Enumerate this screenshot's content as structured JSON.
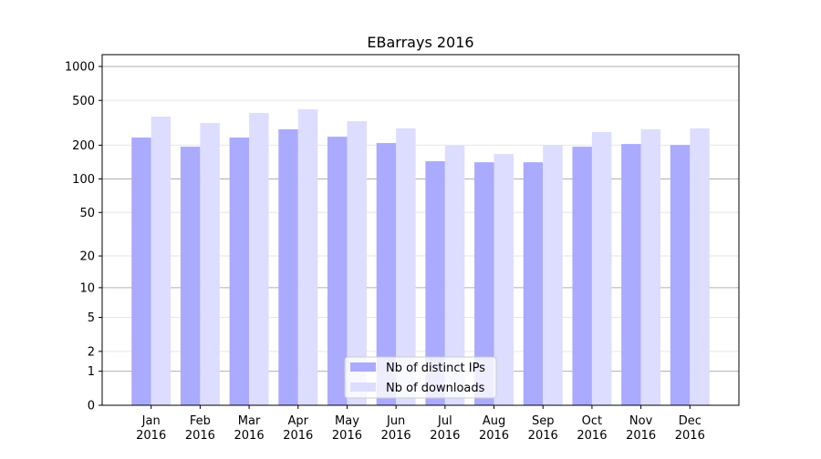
{
  "chart_data": {
    "type": "bar",
    "title": "EBarrays 2016",
    "categories": [
      "Jan 2016",
      "Feb 2016",
      "Mar 2016",
      "Apr 2016",
      "May 2016",
      "Jun 2016",
      "Jul 2016",
      "Aug 2016",
      "Sep 2016",
      "Oct 2016",
      "Nov 2016",
      "Dec 2016"
    ],
    "series": [
      {
        "name": "Nb of distinct IPs",
        "color": "#aaaaff",
        "values": [
          234,
          194,
          234,
          277,
          238,
          209,
          144,
          141,
          141,
          194,
          205,
          201
        ]
      },
      {
        "name": "Nb of downloads",
        "color": "#ddddff",
        "values": [
          359,
          315,
          387,
          417,
          327,
          282,
          198,
          167,
          201,
          262,
          277,
          282
        ]
      }
    ],
    "yscale": "log1p",
    "ylim": [
      0,
      1273
    ],
    "yticks": [
      0,
      1,
      2,
      5,
      10,
      20,
      50,
      100,
      200,
      500,
      1000
    ],
    "grid": true,
    "legend": "lower center"
  }
}
